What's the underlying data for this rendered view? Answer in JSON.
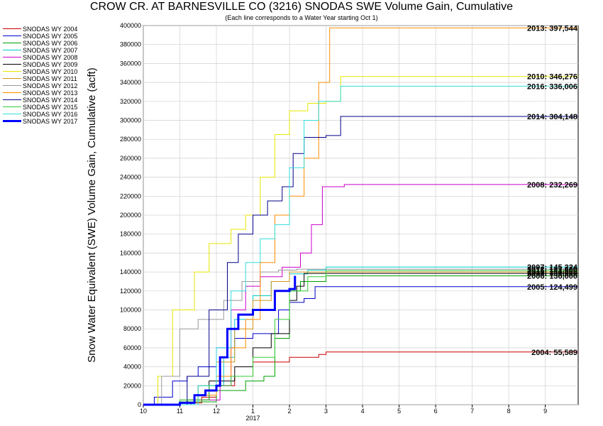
{
  "title": "CROW CR. AT BARNESVILLE CO (3216) SNODAS SWE Volume Gain, Cumulative",
  "subtitle": "(Each line corresponds to a Water Year starting Oct 1)",
  "chart_data": {
    "type": "line",
    "title": "CROW CR. AT BARNESVILLE CO (3216) SNODAS SWE Volume Gain, Cumulative",
    "ylabel": "Snow Water Equivalent (SWE) Volume Gain, Cumulative (acft)",
    "xlabel": "",
    "x_ticks": [
      "10",
      "11",
      "12",
      "1",
      "2",
      "3",
      "4",
      "5",
      "6",
      "7",
      "8",
      "9"
    ],
    "x_year_label": "2017",
    "xlim": [
      0,
      11.9
    ],
    "ylim": [
      0,
      400000
    ],
    "y_ticks": [
      0,
      20000,
      40000,
      60000,
      80000,
      100000,
      120000,
      140000,
      160000,
      180000,
      200000,
      220000,
      240000,
      260000,
      280000,
      300000,
      320000,
      340000,
      360000,
      380000,
      400000
    ],
    "grid": true,
    "legend_position": "left",
    "series": [
      {
        "name": "SNODAS WY 2004",
        "color": "#cc0000",
        "final_label": "2004: 55,589",
        "x": [
          0,
          1.3,
          1.6,
          2.0,
          2.5,
          3.0,
          4.0,
          4.8,
          5.0,
          11.9
        ],
        "y": [
          0,
          2000,
          8000,
          20000,
          30000,
          45000,
          50000,
          53000,
          55589,
          55589
        ]
      },
      {
        "name": "SNODAS WY 2005",
        "color": "#0000cc",
        "final_label": "2005: 124,499",
        "x": [
          0,
          0.3,
          0.8,
          1.2,
          1.5,
          2.0,
          2.5,
          3.0,
          3.7,
          4.0,
          4.4,
          4.7,
          11.9
        ],
        "y": [
          0,
          8000,
          25000,
          30000,
          40000,
          60000,
          70000,
          75000,
          100000,
          108000,
          112000,
          124499,
          124499
        ]
      },
      {
        "name": "SNODAS WY 2006",
        "color": "#00a000",
        "final_label": "2006: 136,000",
        "x": [
          0,
          1.0,
          2.0,
          2.8,
          3.3,
          3.6,
          4.0,
          4.3,
          5.0,
          11.9
        ],
        "y": [
          0,
          3000,
          15000,
          25000,
          30000,
          70000,
          120000,
          130000,
          136000,
          136000
        ]
      },
      {
        "name": "SNODAS WY 2007",
        "color": "#00cccc",
        "final_label": "2007: 145,224",
        "x": [
          0,
          1.0,
          1.5,
          2.2,
          2.5,
          3.0,
          3.5,
          4.0,
          4.5,
          5.0,
          11.9
        ],
        "y": [
          0,
          5000,
          20000,
          50000,
          90000,
          115000,
          130000,
          138000,
          142000,
          145224,
          145224
        ]
      },
      {
        "name": "SNODAS WY 2008",
        "color": "#cc00cc",
        "final_label": "2008: 232,269",
        "x": [
          0,
          1.2,
          2.1,
          2.4,
          2.8,
          3.2,
          3.8,
          4.3,
          4.6,
          4.9,
          5.5,
          11.9
        ],
        "y": [
          0,
          5000,
          20000,
          100000,
          125000,
          135000,
          145000,
          160000,
          190000,
          230000,
          232269,
          232269
        ]
      },
      {
        "name": "SNODAS WY 2009",
        "color": "#000000",
        "final_label": "2009: 138,500",
        "x": [
          0,
          1.2,
          1.8,
          2.5,
          3.0,
          3.5,
          4.0,
          4.2,
          4.4,
          11.9
        ],
        "y": [
          0,
          5000,
          25000,
          40000,
          60000,
          75000,
          110000,
          125000,
          138500,
          138500
        ]
      },
      {
        "name": "SNODAS WY 2010",
        "color": "#e6e600",
        "final_label": "2010: 346,276",
        "x": [
          0,
          0.4,
          0.8,
          1.4,
          1.8,
          2.4,
          2.8,
          3.2,
          3.6,
          4.0,
          4.5,
          5.0,
          5.4,
          11.9
        ],
        "y": [
          0,
          30000,
          100000,
          140000,
          170000,
          185000,
          200000,
          240000,
          285000,
          310000,
          318000,
          320000,
          346276,
          346276
        ]
      },
      {
        "name": "SNODAS WY 2011",
        "color": "#d2961e",
        "final_label": "2011: 140,000",
        "x": [
          0,
          1.0,
          1.5,
          2.0,
          2.5,
          3.0,
          3.5,
          4.0,
          11.9
        ],
        "y": [
          0,
          5000,
          20000,
          45000,
          80000,
          110000,
          130000,
          140000,
          140000
        ]
      },
      {
        "name": "SNODAS WY 2012",
        "color": "#999999",
        "final_label": "2012: 143,000",
        "x": [
          0,
          0.5,
          1.0,
          1.5,
          2.2,
          2.7,
          3.2,
          3.7,
          4.2,
          11.9
        ],
        "y": [
          0,
          30000,
          80000,
          90000,
          110000,
          130000,
          140000,
          142000,
          143000,
          143000
        ]
      },
      {
        "name": "SNODAS WY 2013",
        "color": "#ff8c00",
        "final_label": "2013: 397,544",
        "x": [
          0,
          1.5,
          2.0,
          2.4,
          2.8,
          3.2,
          3.6,
          4.0,
          4.4,
          4.8,
          5.1,
          11.9
        ],
        "y": [
          0,
          10000,
          30000,
          60000,
          90000,
          150000,
          200000,
          220000,
          260000,
          340000,
          397544,
          397544
        ]
      },
      {
        "name": "SNODAS WY 2014",
        "color": "#00008b",
        "final_label": "2014: 304,148",
        "x": [
          0,
          1.2,
          1.8,
          2.3,
          2.6,
          3.0,
          3.4,
          3.8,
          4.1,
          4.4,
          5.0,
          5.4,
          11.9
        ],
        "y": [
          0,
          30000,
          100000,
          150000,
          180000,
          200000,
          215000,
          230000,
          265000,
          282000,
          284000,
          304148,
          304148
        ]
      },
      {
        "name": "SNODAS WY 2015",
        "color": "#33cc33",
        "final_label": "2015: 141,500",
        "x": [
          0,
          1.0,
          1.8,
          2.4,
          3.0,
          3.6,
          4.0,
          4.5,
          5.0,
          11.9
        ],
        "y": [
          0,
          5000,
          20000,
          30000,
          50000,
          90000,
          120000,
          135000,
          141500,
          141500
        ]
      },
      {
        "name": "SNODAS WY 2016",
        "color": "#33dddd",
        "final_label": "2016: 336,006",
        "x": [
          0,
          1.5,
          2.0,
          2.4,
          2.8,
          3.2,
          3.6,
          4.0,
          4.4,
          4.8,
          5.4,
          11.9
        ],
        "y": [
          0,
          20000,
          60000,
          120000,
          150000,
          175000,
          190000,
          250000,
          300000,
          320000,
          336006,
          336006
        ]
      },
      {
        "name": "SNODAS WY 2017",
        "color": "#0000ff",
        "final_label": "",
        "x": [
          0,
          0.8,
          1.0,
          1.4,
          1.7,
          2.0,
          2.1,
          2.3,
          2.6,
          3.0,
          3.6,
          4.0,
          4.15
        ],
        "y": [
          0,
          0,
          2000,
          10000,
          15000,
          20000,
          50000,
          80000,
          95000,
          100000,
          120000,
          122000,
          136000
        ],
        "thick": true
      }
    ]
  }
}
